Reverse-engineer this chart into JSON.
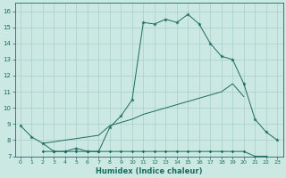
{
  "xlabel": "Humidex (Indice chaleur)",
  "color": "#1a6b5e",
  "bg_color": "#cce8e2",
  "grid_color": "#a8d0ca",
  "ylim": [
    7.0,
    16.5
  ],
  "xlim": [
    -0.5,
    23.5
  ],
  "x": [
    0,
    1,
    2,
    3,
    4,
    5,
    6,
    7,
    8,
    9,
    10,
    11,
    12,
    13,
    14,
    15,
    16,
    17,
    18,
    19,
    20,
    21,
    22,
    23
  ],
  "y_main": [
    8.9,
    8.2,
    7.8,
    7.3,
    7.3,
    7.5,
    7.3,
    7.3,
    8.8,
    9.5,
    10.5,
    15.3,
    15.2,
    15.5,
    15.3,
    15.8,
    15.2,
    14.0,
    13.2,
    13.0,
    11.5,
    9.3,
    8.5,
    8.0
  ],
  "y_diag": [
    null,
    null,
    7.8,
    7.9,
    8.0,
    8.1,
    8.2,
    8.3,
    8.9,
    9.1,
    9.3,
    9.6,
    9.8,
    10.0,
    10.2,
    10.4,
    10.6,
    10.8,
    11.0,
    11.5,
    10.7,
    null,
    null,
    null
  ],
  "y_flat": [
    null,
    null,
    7.3,
    7.3,
    7.3,
    7.3,
    7.3,
    7.3,
    7.3,
    7.3,
    7.3,
    7.3,
    7.3,
    7.3,
    7.3,
    7.3,
    7.3,
    7.3,
    7.3,
    7.3,
    7.3,
    7.0,
    7.0,
    null
  ],
  "yticks": [
    7,
    8,
    9,
    10,
    11,
    12,
    13,
    14,
    15,
    16
  ],
  "xticks": [
    0,
    1,
    2,
    3,
    4,
    5,
    6,
    7,
    8,
    9,
    10,
    11,
    12,
    13,
    14,
    15,
    16,
    17,
    18,
    19,
    20,
    21,
    22,
    23
  ]
}
